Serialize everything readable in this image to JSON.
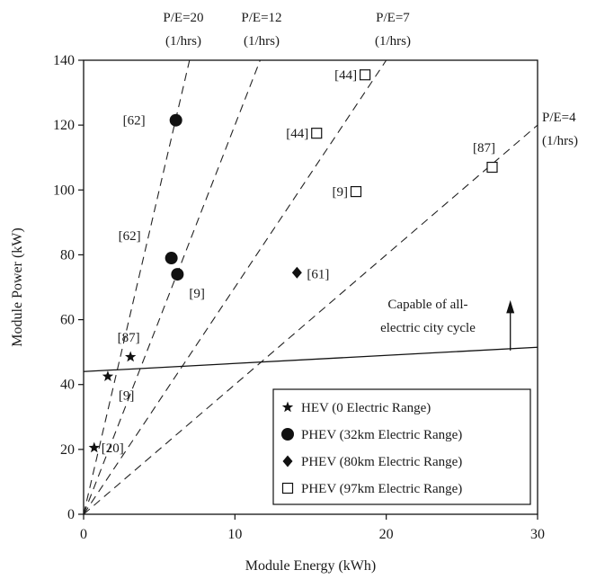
{
  "chart_data": {
    "type": "scatter",
    "xlabel": "Module Energy (kWh)",
    "ylabel": "Module Power (kW)",
    "xlim": [
      0,
      30
    ],
    "ylim": [
      0,
      140
    ],
    "x_ticks": [
      0,
      10,
      20,
      30
    ],
    "y_ticks": [
      0,
      20,
      40,
      60,
      80,
      100,
      120,
      140
    ],
    "grid": false,
    "legend_position": "bottom-right",
    "series": [
      {
        "name": "HEV (0 Electric Range)",
        "marker": "star",
        "points": [
          {
            "x": 0.7,
            "y": 20.5,
            "label": "[20]"
          },
          {
            "x": 1.6,
            "y": 42.5,
            "label": "[9]"
          },
          {
            "x": 3.1,
            "y": 48.5,
            "label": "[87]"
          }
        ]
      },
      {
        "name": "PHEV (32km Electric Range)",
        "marker": "circle",
        "points": [
          {
            "x": 6.1,
            "y": 121.5,
            "label": "[62]"
          },
          {
            "x": 5.8,
            "y": 79,
            "label": "[62]"
          },
          {
            "x": 6.2,
            "y": 74,
            "label": "[9]"
          }
        ]
      },
      {
        "name": "PHEV (80km Electric Range)",
        "marker": "diamond",
        "points": [
          {
            "x": 14.1,
            "y": 74.5,
            "label": "[61]"
          }
        ]
      },
      {
        "name": "PHEV (97km Electric Range)",
        "marker": "open-square",
        "points": [
          {
            "x": 18.6,
            "y": 135.5,
            "label": "[44]"
          },
          {
            "x": 15.4,
            "y": 117.5,
            "label": "[44]"
          },
          {
            "x": 18.0,
            "y": 99.5,
            "label": "[9]"
          },
          {
            "x": 27.0,
            "y": 107.0,
            "label": "[87]"
          }
        ]
      }
    ],
    "reference_lines": [
      {
        "ratio": 20,
        "label": "P/E=20",
        "unit": "(1/hrs)"
      },
      {
        "ratio": 12,
        "label": "P/E=12",
        "unit": "(1/hrs)"
      },
      {
        "ratio": 7,
        "label": "P/E=7",
        "unit": "(1/hrs)"
      },
      {
        "ratio": 4,
        "label": "P/E=4",
        "unit": "(1/hrs)"
      }
    ],
    "threshold_line": {
      "from": [
        0,
        44
      ],
      "to": [
        30,
        51.5
      ],
      "annotation": [
        "Capable of all-",
        "electric city cycle"
      ]
    }
  }
}
